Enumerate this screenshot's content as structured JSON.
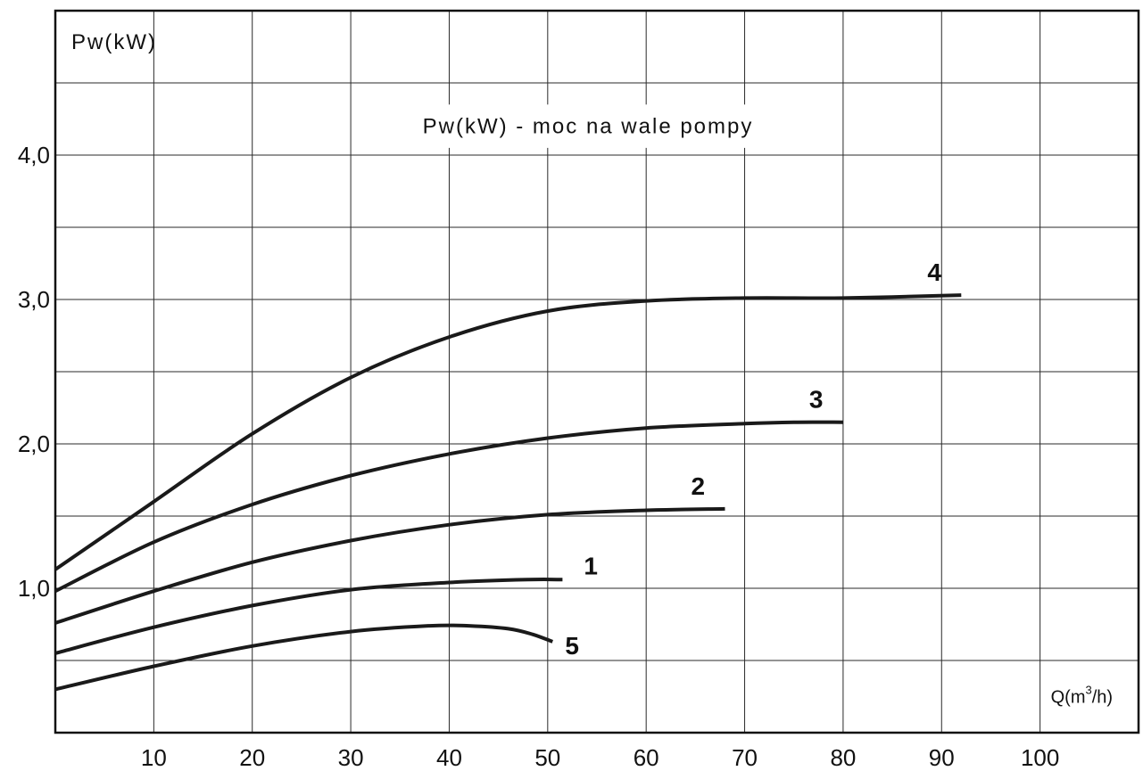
{
  "chart_data": {
    "type": "line",
    "ylabel": "Pw(kW)",
    "annotation": "Pw(kW) - moc na wale pompy",
    "xlabel": {
      "prefix": "Q(m",
      "superscript": "3",
      "suffix": "/h)"
    },
    "xlim": [
      0,
      110
    ],
    "ylim": [
      0,
      5.0
    ],
    "x_ticks": [
      10,
      20,
      30,
      40,
      50,
      60,
      70,
      80,
      90,
      100
    ],
    "y_ticks": [
      {
        "value": 1.0,
        "label": "1,0"
      },
      {
        "value": 2.0,
        "label": "2,0"
      },
      {
        "value": 3.0,
        "label": "3,0"
      },
      {
        "value": 4.0,
        "label": "4,0"
      }
    ],
    "grid": true,
    "line_color": "#1a1a1a",
    "series": [
      {
        "name": "4",
        "x": [
          0,
          10,
          20,
          30,
          40,
          50,
          60,
          70,
          80,
          92
        ],
        "y": [
          1.13,
          1.6,
          2.07,
          2.46,
          2.74,
          2.92,
          2.99,
          3.01,
          3.01,
          3.03
        ]
      },
      {
        "name": "3",
        "x": [
          0,
          10,
          20,
          30,
          40,
          50,
          60,
          70,
          75,
          80
        ],
        "y": [
          0.98,
          1.32,
          1.58,
          1.78,
          1.93,
          2.04,
          2.11,
          2.14,
          2.15,
          2.15
        ]
      },
      {
        "name": "2",
        "x": [
          0,
          10,
          20,
          30,
          40,
          50,
          60,
          68
        ],
        "y": [
          0.76,
          0.98,
          1.18,
          1.33,
          1.44,
          1.51,
          1.54,
          1.55
        ]
      },
      {
        "name": "1",
        "x": [
          0,
          10,
          20,
          30,
          40,
          48,
          51.5
        ],
        "y": [
          0.55,
          0.73,
          0.88,
          0.99,
          1.04,
          1.06,
          1.06
        ]
      },
      {
        "name": "5",
        "x": [
          0,
          10,
          20,
          30,
          38,
          42,
          46,
          48.5,
          50.5
        ],
        "y": [
          0.3,
          0.46,
          0.6,
          0.7,
          0.74,
          0.74,
          0.72,
          0.68,
          0.63
        ]
      }
    ]
  }
}
